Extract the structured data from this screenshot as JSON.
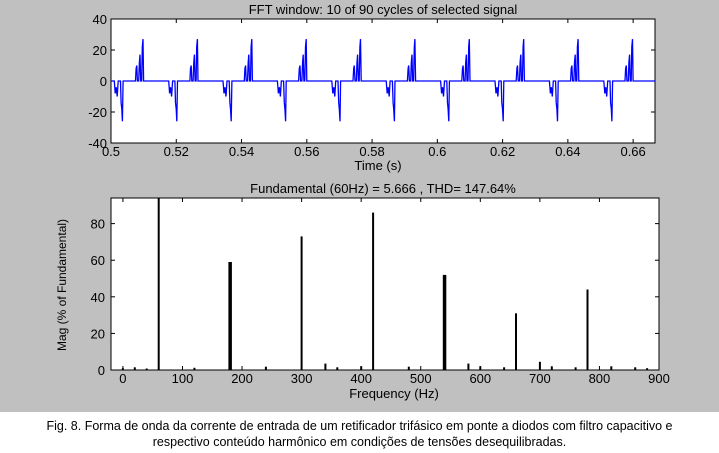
{
  "figure": {
    "background": "#c0c0c0",
    "axes_background": "#ffffff"
  },
  "chart_data": [
    {
      "type": "line",
      "title": "FFT window: 10 of 90 cycles of selected signal",
      "xlabel": "Time (s)",
      "ylabel": "",
      "xlim": [
        0.5,
        0.6667
      ],
      "ylim": [
        -40,
        40
      ],
      "xticks": [
        "0.5",
        "0.52",
        "0.54",
        "0.56",
        "0.58",
        "0.6",
        "0.62",
        "0.64",
        "0.66"
      ],
      "yticks": [
        "40",
        "20",
        "0",
        "-20",
        "-40"
      ],
      "grid": false,
      "color": "#0000ff",
      "cycles": 10,
      "cycle_start": 0.5,
      "cycle_period": 0.016667,
      "cycle_pattern": [
        [
          0.0,
          0
        ],
        [
          0.001,
          0
        ],
        [
          0.0013,
          -8
        ],
        [
          0.0016,
          -4
        ],
        [
          0.0019,
          -10
        ],
        [
          0.0022,
          0
        ],
        [
          0.0029,
          0
        ],
        [
          0.0031,
          -14
        ],
        [
          0.0033,
          -18
        ],
        [
          0.0035,
          -26
        ],
        [
          0.0037,
          0
        ],
        [
          0.0075,
          0
        ],
        [
          0.0077,
          8
        ],
        [
          0.0079,
          10
        ],
        [
          0.0081,
          0
        ],
        [
          0.0085,
          0
        ],
        [
          0.0087,
          12
        ],
        [
          0.0089,
          17
        ],
        [
          0.0091,
          0
        ],
        [
          0.0094,
          0
        ],
        [
          0.0096,
          22
        ],
        [
          0.0098,
          27
        ],
        [
          0.01,
          0
        ],
        [
          0.016,
          0
        ]
      ],
      "series": [
        {
          "values_note": ""
        }
      ]
    },
    {
      "type": "bar",
      "title": "Fundamental (60Hz) = 5.666 , THD= 147.64%",
      "xlabel": "Frequency (Hz)",
      "ylabel": "Mag (% of Fundamental)",
      "xlim": [
        -20,
        900
      ],
      "ylim": [
        0,
        94
      ],
      "xticks": [
        "0",
        "100",
        "200",
        "300",
        "400",
        "500",
        "600",
        "700",
        "800",
        "900"
      ],
      "yticks": [
        "0",
        "20",
        "40",
        "60",
        "80"
      ],
      "grid": false,
      "color": "#000000",
      "x": [
        0,
        20,
        40,
        60,
        120,
        180,
        240,
        300,
        340,
        360,
        400,
        420,
        480,
        540,
        580,
        600,
        640,
        660,
        700,
        720,
        760,
        780,
        820,
        860,
        880
      ],
      "values": [
        1.0,
        1.5,
        0.8,
        100,
        1.2,
        59,
        1.8,
        73,
        3.5,
        1.5,
        2.0,
        86,
        1.8,
        52,
        3.5,
        2.0,
        1.5,
        31,
        4.5,
        2.0,
        1.5,
        44,
        2.0,
        1.5,
        1.0
      ]
    }
  ],
  "caption": {
    "line1": "Fig. 8. Forma de onda da corrente de entrada de um retificador trifásico em ponte a diodos com filtro capacitivo e",
    "line2": "respectivo conteúdo harmônico em condições de tensões desequilibradas."
  }
}
